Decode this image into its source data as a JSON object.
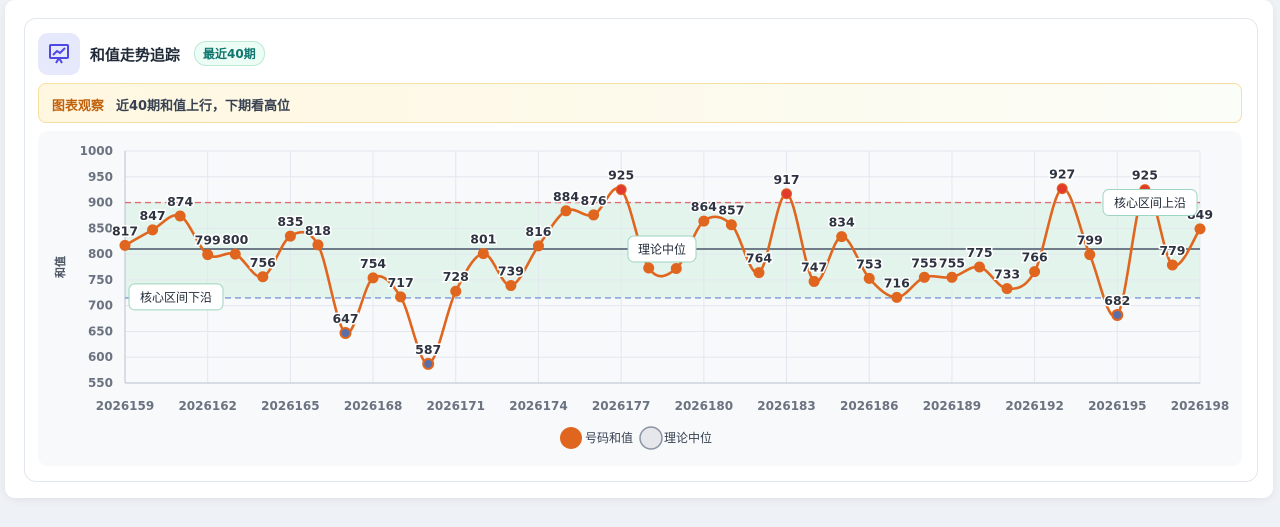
{
  "header": {
    "title": "和值走势追踪",
    "badge": "最近40期"
  },
  "observation": {
    "label": "图表观察",
    "text": "近40期和值上行，下期看高位"
  },
  "chart_data": {
    "type": "line",
    "y_label": "和值",
    "x": [
      2026159,
      2026160,
      2026161,
      2026162,
      2026163,
      2026164,
      2026165,
      2026166,
      2026167,
      2026168,
      2026169,
      2026170,
      2026171,
      2026172,
      2026173,
      2026174,
      2026175,
      2026176,
      2026177,
      2026178,
      2026179,
      2026180,
      2026181,
      2026182,
      2026183,
      2026184,
      2026185,
      2026186,
      2026187,
      2026188,
      2026189,
      2026190,
      2026191,
      2026192,
      2026193,
      2026194,
      2026195,
      2026196,
      2026197,
      2026198
    ],
    "xlim": [
      2026159,
      2026198
    ],
    "xticks": [
      2026159,
      2026162,
      2026165,
      2026168,
      2026171,
      2026174,
      2026177,
      2026180,
      2026183,
      2026186,
      2026189,
      2026192,
      2026195,
      2026198
    ],
    "ylim": [
      550,
      1000
    ],
    "yticks": [
      550,
      600,
      650,
      700,
      750,
      800,
      850,
      900,
      950,
      1000
    ],
    "grid": true,
    "series": [
      {
        "name": "号码和值",
        "color": "#e0661f",
        "values": [
          817,
          847,
          874,
          799,
          800,
          756,
          835,
          818,
          647,
          754,
          717,
          587,
          728,
          801,
          739,
          816,
          884,
          876,
          925,
          773,
          772,
          864,
          857,
          764,
          917,
          747,
          834,
          753,
          716,
          755,
          755,
          775,
          733,
          766,
          927,
          799,
          682,
          925,
          779,
          849
        ]
      }
    ],
    "reference_lines": [
      {
        "name": "核心区间上沿",
        "value": 900,
        "color": "#e07070"
      },
      {
        "name": "理论中位",
        "value": 810,
        "color": "#4b5568"
      },
      {
        "name": "核心区间下沿",
        "value": 715,
        "color": "#7a98d8"
      }
    ],
    "band_color": "#e3f4ec"
  }
}
